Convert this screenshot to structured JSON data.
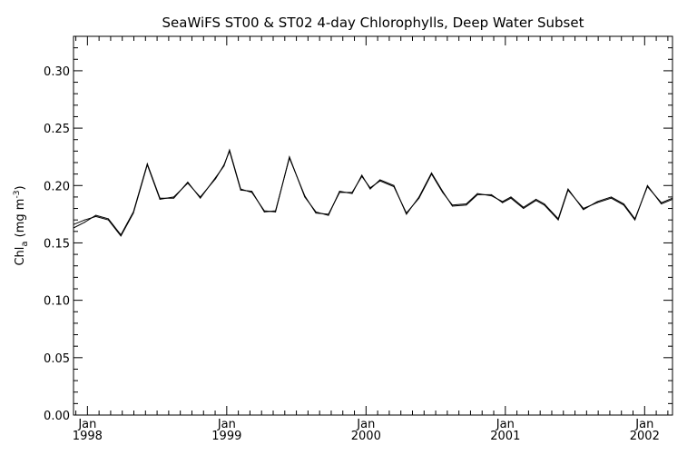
{
  "chart_data": {
    "type": "line",
    "title": "SeaWiFS ST00 & ST02 4-day Chlorophylls, Deep Water Subset",
    "xlabel": "",
    "ylabel_main": "Chl",
    "ylabel_sub": "a",
    "ylabel_units_pre": " (mg m",
    "ylabel_units_sup": "-3",
    "ylabel_units_post": ")",
    "ylim": [
      0.0,
      0.33
    ],
    "xlim": [
      1997.9,
      2002.2
    ],
    "yticks": [
      0.0,
      0.05,
      0.1,
      0.15,
      0.2,
      0.25,
      0.3
    ],
    "ytick_labels": [
      "0.00",
      "0.05",
      "0.10",
      "0.15",
      "0.20",
      "0.25",
      "0.30"
    ],
    "xticks": [
      {
        "x": 1998.0,
        "month": "Jan",
        "year": "1998"
      },
      {
        "x": 1999.0,
        "month": "Jan",
        "year": "1999"
      },
      {
        "x": 2000.0,
        "month": "Jan",
        "year": "2000"
      },
      {
        "x": 2001.0,
        "month": "Jan",
        "year": "2001"
      },
      {
        "x": 2002.0,
        "month": "Jan",
        "year": "2002"
      }
    ],
    "grid": false,
    "series": [
      {
        "x": [
          1997.9,
          1997.98,
          1998.06,
          1998.15,
          1998.24,
          1998.33,
          1998.43,
          1998.52,
          1998.62,
          1998.72,
          1998.81,
          1998.92,
          1998.98,
          1999.02,
          1999.1,
          1999.18,
          1999.27,
          1999.35,
          1999.45,
          1999.56,
          1999.64,
          1999.73,
          1999.81,
          1999.9,
          1999.97,
          2000.03,
          2000.1,
          2000.2,
          2000.29,
          2000.38,
          2000.47,
          2000.55,
          2000.62,
          2000.72,
          2000.8,
          2000.9,
          2000.98,
          2001.04,
          2001.13,
          2001.22,
          2001.28,
          2001.38,
          2001.45,
          2001.56,
          2001.66,
          2001.76,
          2001.85,
          2001.93,
          2002.02,
          2002.12,
          2002.2
        ],
        "values": [
          0.163,
          0.168,
          0.174,
          0.171,
          0.157,
          0.177,
          0.219,
          0.189,
          0.189,
          0.203,
          0.189,
          0.207,
          0.217,
          0.231,
          0.197,
          0.194,
          0.178,
          0.177,
          0.225,
          0.19,
          0.177,
          0.174,
          0.195,
          0.193,
          0.209,
          0.197,
          0.205,
          0.2,
          0.175,
          0.19,
          0.211,
          0.195,
          0.182,
          0.183,
          0.192,
          0.192,
          0.185,
          0.189,
          0.18,
          0.187,
          0.183,
          0.17,
          0.196,
          0.18,
          0.185,
          0.189,
          0.183,
          0.17,
          0.2,
          0.184,
          0.188
        ]
      },
      {
        "x": [
          1997.9,
          1997.98,
          1998.06,
          1998.15,
          1998.24,
          1998.33,
          1998.43,
          1998.52,
          1998.62,
          1998.72,
          1998.81,
          1998.92,
          1998.98,
          1999.02,
          1999.1,
          1999.18,
          1999.27,
          1999.35,
          1999.45,
          1999.56,
          1999.64,
          1999.73,
          1999.81,
          1999.9,
          1999.97,
          2000.03,
          2000.1,
          2000.2,
          2000.29,
          2000.38,
          2000.47,
          2000.55,
          2000.62,
          2000.72,
          2000.8,
          2000.9,
          2000.98,
          2001.04,
          2001.13,
          2001.22,
          2001.28,
          2001.38,
          2001.45,
          2001.56,
          2001.66,
          2001.76,
          2001.85,
          2001.93,
          2002.02,
          2002.12,
          2002.2
        ],
        "values": [
          0.166,
          0.17,
          0.173,
          0.17,
          0.156,
          0.176,
          0.218,
          0.188,
          0.19,
          0.202,
          0.19,
          0.206,
          0.218,
          0.23,
          0.196,
          0.195,
          0.177,
          0.178,
          0.224,
          0.191,
          0.176,
          0.175,
          0.194,
          0.194,
          0.208,
          0.198,
          0.204,
          0.199,
          0.176,
          0.189,
          0.21,
          0.194,
          0.183,
          0.184,
          0.193,
          0.191,
          0.186,
          0.19,
          0.181,
          0.188,
          0.184,
          0.171,
          0.197,
          0.179,
          0.186,
          0.19,
          0.184,
          0.171,
          0.199,
          0.185,
          0.189
        ]
      }
    ],
    "line_color": "#000000"
  }
}
